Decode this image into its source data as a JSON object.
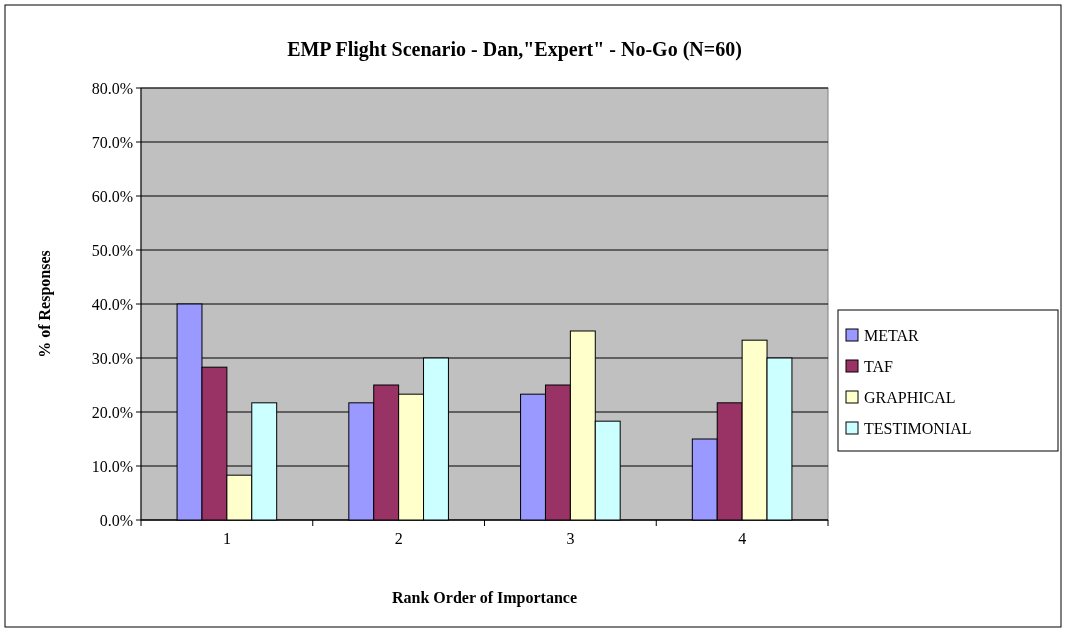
{
  "chart_data": {
    "type": "bar",
    "title": "EMP Flight Scenario - Dan,\"Expert\" - No-Go (N=60)",
    "xlabel": "Rank Order of Importance",
    "ylabel": "% of Responses",
    "categories": [
      "1",
      "2",
      "3",
      "4"
    ],
    "series": [
      {
        "name": "METAR",
        "color": "#9999ff",
        "values": [
          40.0,
          21.7,
          23.3,
          15.0
        ]
      },
      {
        "name": "TAF",
        "color": "#993366",
        "values": [
          28.3,
          25.0,
          25.0,
          21.7
        ]
      },
      {
        "name": "GRAPHICAL",
        "color": "#ffffcc",
        "values": [
          8.3,
          23.3,
          35.0,
          33.3
        ]
      },
      {
        "name": "TESTIMONIAL",
        "color": "#ccffff",
        "values": [
          21.7,
          30.0,
          18.3,
          30.0
        ]
      }
    ],
    "ylim": [
      0,
      80
    ],
    "yticks": [
      {
        "value": 0,
        "label": "0.0%"
      },
      {
        "value": 10,
        "label": "10.0%"
      },
      {
        "value": 20,
        "label": "20.0%"
      },
      {
        "value": 30,
        "label": "30.0%"
      },
      {
        "value": 40,
        "label": "40.0%"
      },
      {
        "value": 50,
        "label": "50.0%"
      },
      {
        "value": 60,
        "label": "60.0%"
      },
      {
        "value": 70,
        "label": "70.0%"
      },
      {
        "value": 80,
        "label": "80.0%"
      }
    ],
    "grid": "y",
    "legend": "right"
  }
}
